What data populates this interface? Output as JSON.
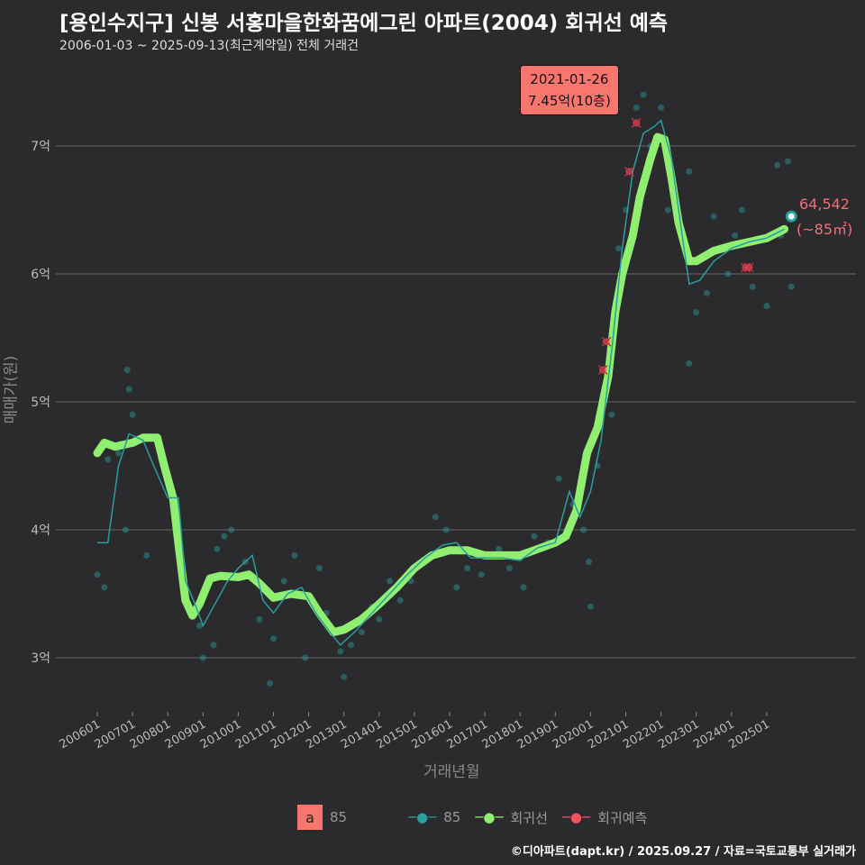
{
  "title": "[용인수지구] 신봉 서홍마을한화꿈에그린 아파트(2004) 회귀선 예측",
  "subtitle": "2006-01-03 ~ 2025-09-13(최근계약일) 전체 거래건",
  "annotation": {
    "date": "2021-01-26",
    "value": "7.45억(10층)"
  },
  "end_label": {
    "value": "64,542",
    "area": "(~85㎡)"
  },
  "legend": {
    "box_letter": "a",
    "box_label": "85",
    "items": [
      {
        "label": "85",
        "color": "#2a9d9f"
      },
      {
        "label": "회귀선",
        "color": "#90ee70"
      },
      {
        "label": "회귀예측",
        "color": "#f0545c"
      }
    ]
  },
  "footer": "©디아파트(dapt.kr) / 2025.09.27 / 자료=국토교통부 실거래가",
  "chart_data": {
    "type": "line",
    "xlabel": "거래년월",
    "ylabel": "매매가(원)",
    "ylim": [
      2.6,
      7.6
    ],
    "xlim": [
      2005.5,
      2026.3
    ],
    "yticks": [
      {
        "v": 3,
        "label": "3억"
      },
      {
        "v": 4,
        "label": "4억"
      },
      {
        "v": 5,
        "label": "5억"
      },
      {
        "v": 6,
        "label": "6억"
      },
      {
        "v": 7,
        "label": "7억"
      }
    ],
    "xticks": [
      "200601",
      "200701",
      "200801",
      "200901",
      "201001",
      "201101",
      "201201",
      "201301",
      "201401",
      "201501",
      "201601",
      "201701",
      "201801",
      "201901",
      "202001",
      "202101",
      "202201",
      "202301",
      "202401",
      "202501"
    ],
    "regression": [
      [
        2006.0,
        4.6
      ],
      [
        2006.2,
        4.68
      ],
      [
        2006.5,
        4.65
      ],
      [
        2007.0,
        4.68
      ],
      [
        2007.3,
        4.72
      ],
      [
        2007.7,
        4.72
      ],
      [
        2007.9,
        4.5
      ],
      [
        2008.15,
        4.25
      ],
      [
        2008.3,
        3.9
      ],
      [
        2008.5,
        3.45
      ],
      [
        2008.7,
        3.33
      ],
      [
        2008.9,
        3.42
      ],
      [
        2009.2,
        3.62
      ],
      [
        2009.5,
        3.64
      ],
      [
        2010.0,
        3.63
      ],
      [
        2010.3,
        3.65
      ],
      [
        2010.6,
        3.58
      ],
      [
        2011.0,
        3.47
      ],
      [
        2011.5,
        3.5
      ],
      [
        2012.0,
        3.48
      ],
      [
        2012.3,
        3.35
      ],
      [
        2012.7,
        3.2
      ],
      [
        2013.0,
        3.22
      ],
      [
        2013.5,
        3.3
      ],
      [
        2014.0,
        3.42
      ],
      [
        2014.5,
        3.55
      ],
      [
        2015.0,
        3.7
      ],
      [
        2015.5,
        3.8
      ],
      [
        2016.0,
        3.84
      ],
      [
        2016.5,
        3.84
      ],
      [
        2017.0,
        3.8
      ],
      [
        2017.5,
        3.8
      ],
      [
        2018.0,
        3.8
      ],
      [
        2018.5,
        3.85
      ],
      [
        2019.0,
        3.9
      ],
      [
        2019.3,
        3.95
      ],
      [
        2019.6,
        4.15
      ],
      [
        2019.9,
        4.6
      ],
      [
        2020.2,
        4.8
      ],
      [
        2020.5,
        5.2
      ],
      [
        2020.7,
        5.7
      ],
      [
        2020.9,
        6.0
      ],
      [
        2021.2,
        6.3
      ],
      [
        2021.4,
        6.6
      ],
      [
        2021.7,
        6.9
      ],
      [
        2021.9,
        7.07
      ],
      [
        2022.1,
        7.05
      ],
      [
        2022.3,
        6.75
      ],
      [
        2022.5,
        6.4
      ],
      [
        2022.8,
        6.1
      ],
      [
        2023.0,
        6.1
      ],
      [
        2023.5,
        6.18
      ],
      [
        2024.0,
        6.22
      ],
      [
        2024.5,
        6.25
      ],
      [
        2025.0,
        6.28
      ],
      [
        2025.5,
        6.35
      ]
    ],
    "moving_avg": [
      [
        2006.0,
        3.9
      ],
      [
        2006.3,
        3.9
      ],
      [
        2006.6,
        4.5
      ],
      [
        2006.9,
        4.75
      ],
      [
        2007.3,
        4.7
      ],
      [
        2007.6,
        4.5
      ],
      [
        2008.0,
        4.25
      ],
      [
        2008.3,
        4.25
      ],
      [
        2008.5,
        3.6
      ],
      [
        2008.8,
        3.4
      ],
      [
        2009.0,
        3.25
      ],
      [
        2009.3,
        3.4
      ],
      [
        2009.7,
        3.6
      ],
      [
        2010.0,
        3.7
      ],
      [
        2010.4,
        3.8
      ],
      [
        2010.7,
        3.45
      ],
      [
        2011.0,
        3.35
      ],
      [
        2011.4,
        3.5
      ],
      [
        2011.8,
        3.55
      ],
      [
        2012.2,
        3.35
      ],
      [
        2012.6,
        3.2
      ],
      [
        2012.9,
        3.1
      ],
      [
        2013.3,
        3.2
      ],
      [
        2013.8,
        3.35
      ],
      [
        2014.3,
        3.5
      ],
      [
        2014.8,
        3.65
      ],
      [
        2015.3,
        3.78
      ],
      [
        2015.8,
        3.88
      ],
      [
        2016.2,
        3.9
      ],
      [
        2016.6,
        3.78
      ],
      [
        2017.0,
        3.78
      ],
      [
        2017.5,
        3.78
      ],
      [
        2018.0,
        3.76
      ],
      [
        2018.5,
        3.86
      ],
      [
        2019.0,
        3.9
      ],
      [
        2019.4,
        4.3
      ],
      [
        2019.7,
        4.1
      ],
      [
        2020.0,
        4.3
      ],
      [
        2020.3,
        4.7
      ],
      [
        2020.6,
        5.4
      ],
      [
        2020.9,
        6.2
      ],
      [
        2021.2,
        6.8
      ],
      [
        2021.5,
        7.1
      ],
      [
        2021.8,
        7.15
      ],
      [
        2022.0,
        7.2
      ],
      [
        2022.3,
        6.9
      ],
      [
        2022.6,
        6.3
      ],
      [
        2022.8,
        5.92
      ],
      [
        2023.1,
        5.95
      ],
      [
        2023.5,
        6.1
      ],
      [
        2024.0,
        6.2
      ],
      [
        2024.5,
        6.25
      ],
      [
        2025.0,
        6.28
      ],
      [
        2025.5,
        6.35
      ]
    ],
    "transactions": [
      [
        2006.0,
        3.65
      ],
      [
        2006.2,
        3.55
      ],
      [
        2006.3,
        4.55
      ],
      [
        2006.6,
        4.6
      ],
      [
        2006.8,
        4.0
      ],
      [
        2006.85,
        5.25
      ],
      [
        2006.9,
        5.1
      ],
      [
        2007.0,
        4.9
      ],
      [
        2007.2,
        4.7
      ],
      [
        2007.4,
        3.8
      ],
      [
        2008.9,
        3.25
      ],
      [
        2009.0,
        3.0
      ],
      [
        2009.3,
        3.1
      ],
      [
        2009.4,
        3.85
      ],
      [
        2009.6,
        3.95
      ],
      [
        2009.8,
        4.0
      ],
      [
        2010.2,
        3.75
      ],
      [
        2010.6,
        3.3
      ],
      [
        2010.9,
        2.8
      ],
      [
        2011.0,
        3.15
      ],
      [
        2011.3,
        3.6
      ],
      [
        2011.6,
        3.8
      ],
      [
        2011.9,
        3.0
      ],
      [
        2012.3,
        3.7
      ],
      [
        2012.5,
        3.35
      ],
      [
        2012.9,
        3.05
      ],
      [
        2013.0,
        2.85
      ],
      [
        2013.2,
        3.1
      ],
      [
        2013.5,
        3.2
      ],
      [
        2013.8,
        3.4
      ],
      [
        2014.0,
        3.3
      ],
      [
        2014.3,
        3.6
      ],
      [
        2014.6,
        3.45
      ],
      [
        2014.9,
        3.6
      ],
      [
        2015.2,
        3.75
      ],
      [
        2015.6,
        4.1
      ],
      [
        2015.9,
        4.0
      ],
      [
        2016.2,
        3.55
      ],
      [
        2016.5,
        3.7
      ],
      [
        2016.9,
        3.65
      ],
      [
        2017.4,
        3.85
      ],
      [
        2017.7,
        3.7
      ],
      [
        2018.1,
        3.55
      ],
      [
        2018.4,
        3.95
      ],
      [
        2018.8,
        3.9
      ],
      [
        2019.1,
        4.4
      ],
      [
        2019.5,
        4.2
      ],
      [
        2019.8,
        4.0
      ],
      [
        2019.95,
        3.75
      ],
      [
        2020.0,
        3.4
      ],
      [
        2020.2,
        4.5
      ],
      [
        2020.6,
        4.9
      ],
      [
        2020.8,
        6.2
      ],
      [
        2021.0,
        6.5
      ],
      [
        2021.3,
        7.3
      ],
      [
        2021.5,
        7.4
      ],
      [
        2021.7,
        7.0
      ],
      [
        2022.0,
        7.3
      ],
      [
        2022.2,
        6.5
      ],
      [
        2022.8,
        6.8
      ],
      [
        2022.8,
        5.3
      ],
      [
        2023.0,
        5.7
      ],
      [
        2023.3,
        5.85
      ],
      [
        2023.5,
        6.45
      ],
      [
        2023.9,
        6.0
      ],
      [
        2024.1,
        6.3
      ],
      [
        2024.3,
        6.5
      ],
      [
        2024.6,
        5.9
      ],
      [
        2025.0,
        5.75
      ],
      [
        2025.3,
        6.85
      ],
      [
        2025.4,
        6.3
      ],
      [
        2025.6,
        6.88
      ],
      [
        2025.7,
        5.9
      ]
    ],
    "predictions": [
      [
        2020.35,
        5.25
      ],
      [
        2020.45,
        5.47
      ],
      [
        2021.1,
        6.8
      ],
      [
        2021.3,
        7.18
      ],
      [
        2024.4,
        6.05
      ],
      [
        2024.5,
        6.05
      ]
    ],
    "highlight": [
      2025.7,
      6.45
    ]
  }
}
